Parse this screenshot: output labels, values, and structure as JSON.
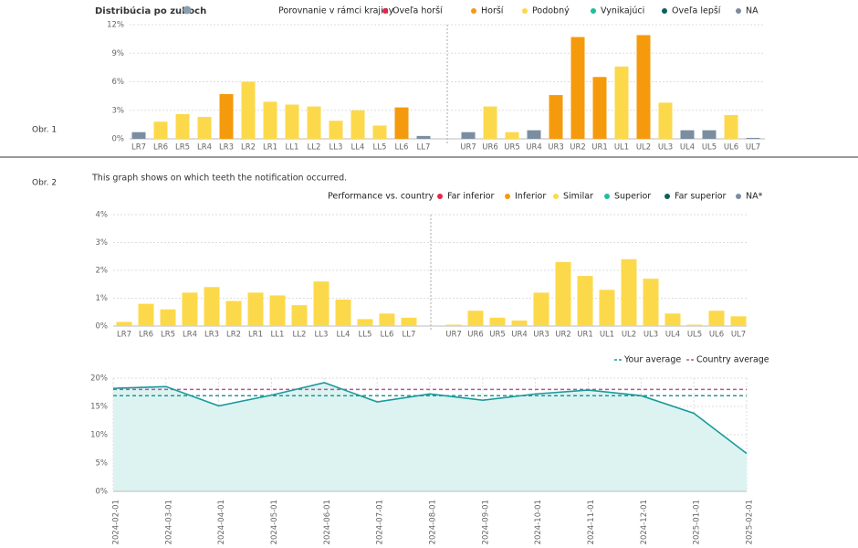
{
  "chart_data": [
    {
      "type": "bar",
      "figure_label": "Obr. 1",
      "title": "Distribúcia po zuboch",
      "legend_title": "Porovnanie v rámci krajiny",
      "legend": [
        {
          "name": "Oveľa horší",
          "color": "#e8264a"
        },
        {
          "name": "Horší",
          "color": "#f59a0c"
        },
        {
          "name": "Podobný",
          "color": "#fcd94a"
        },
        {
          "name": "Vynikajúci",
          "color": "#1dbf9f"
        },
        {
          "name": "Oveľa lepší",
          "color": "#0e5e5e"
        },
        {
          "name": "NA",
          "color": "#7a8ea0"
        }
      ],
      "halves": [
        {
          "categories": [
            "LR7",
            "LR6",
            "LR5",
            "LR4",
            "LR3",
            "LR2",
            "LR1",
            "LL1",
            "LL2",
            "LL3",
            "LL4",
            "LL5",
            "LL6",
            "LL7"
          ],
          "values": [
            0.7,
            1.8,
            2.6,
            2.3,
            4.7,
            6.0,
            3.9,
            3.6,
            3.4,
            1.9,
            3.0,
            1.4,
            3.3,
            0.3
          ],
          "colors": [
            "#7a8ea0",
            "#fcd94a",
            "#fcd94a",
            "#fcd94a",
            "#f59a0c",
            "#fcd94a",
            "#fcd94a",
            "#fcd94a",
            "#fcd94a",
            "#fcd94a",
            "#fcd94a",
            "#fcd94a",
            "#f59a0c",
            "#7a8ea0"
          ]
        },
        {
          "categories": [
            "UR7",
            "UR6",
            "UR5",
            "UR4",
            "UR3",
            "UR2",
            "UR1",
            "UL1",
            "UL2",
            "UL3",
            "UL4",
            "UL5",
            "UL6",
            "UL7"
          ],
          "values": [
            0.7,
            3.4,
            0.7,
            0.9,
            4.6,
            10.7,
            6.5,
            7.6,
            10.9,
            3.8,
            0.9,
            0.9,
            2.5,
            0.1
          ],
          "colors": [
            "#7a8ea0",
            "#fcd94a",
            "#fcd94a",
            "#7a8ea0",
            "#f59a0c",
            "#f59a0c",
            "#f59a0c",
            "#fcd94a",
            "#f59a0c",
            "#fcd94a",
            "#7a8ea0",
            "#7a8ea0",
            "#fcd94a",
            "#7a8ea0"
          ]
        }
      ],
      "ylim": [
        0,
        12
      ],
      "yticks": [
        {
          "value": 0,
          "label": "0%"
        },
        {
          "value": 3,
          "label": "3%"
        },
        {
          "value": 6,
          "label": "6%"
        },
        {
          "value": 9,
          "label": "9%"
        },
        {
          "value": 12,
          "label": "12%"
        }
      ],
      "grid": true
    },
    {
      "type": "bar",
      "figure_label": "Obr. 2",
      "subtitle": "This graph shows on which teeth the notification occurred.",
      "legend_title": "Performance vs. country",
      "legend": [
        {
          "name": "Far inferior",
          "color": "#e8264a"
        },
        {
          "name": "Inferior",
          "color": "#f59a0c"
        },
        {
          "name": "Similar",
          "color": "#fcd94a"
        },
        {
          "name": "Superior",
          "color": "#1dbf9f"
        },
        {
          "name": "Far superior",
          "color": "#0e5e5e"
        },
        {
          "name": "NA*",
          "color": "#7a8ea0"
        }
      ],
      "halves": [
        {
          "categories": [
            "LR7",
            "LR6",
            "LR5",
            "LR4",
            "LR3",
            "LR2",
            "LR1",
            "LL1",
            "LL2",
            "LL3",
            "LL4",
            "LL5",
            "LL6",
            "LL7"
          ],
          "values": [
            0.15,
            0.8,
            0.6,
            1.2,
            1.4,
            0.9,
            1.2,
            1.1,
            0.75,
            1.6,
            0.95,
            0.25,
            0.45,
            0.3
          ],
          "colors": [
            "#fcd94a",
            "#fcd94a",
            "#fcd94a",
            "#fcd94a",
            "#fcd94a",
            "#fcd94a",
            "#fcd94a",
            "#fcd94a",
            "#fcd94a",
            "#fcd94a",
            "#fcd94a",
            "#fcd94a",
            "#fcd94a",
            "#fcd94a"
          ]
        },
        {
          "categories": [
            "UR7",
            "UR6",
            "UR5",
            "UR4",
            "UR3",
            "UR2",
            "UR1",
            "UL1",
            "UL2",
            "UL3",
            "UL4",
            "UL5",
            "UL6",
            "UL7"
          ],
          "values": [
            0.05,
            0.55,
            0.3,
            0.2,
            1.2,
            2.3,
            1.8,
            1.3,
            2.4,
            1.7,
            0.45,
            0.05,
            0.55,
            0.35
          ],
          "colors": [
            "#fcd94a",
            "#fcd94a",
            "#fcd94a",
            "#fcd94a",
            "#fcd94a",
            "#fcd94a",
            "#fcd94a",
            "#fcd94a",
            "#fcd94a",
            "#fcd94a",
            "#fcd94a",
            "#fcd94a",
            "#fcd94a",
            "#fcd94a"
          ]
        }
      ],
      "ylim": [
        0,
        4
      ],
      "yticks": [
        {
          "value": 0,
          "label": "0%"
        },
        {
          "value": 1,
          "label": "1%"
        },
        {
          "value": 2,
          "label": "2%"
        },
        {
          "value": 3,
          "label": "3%"
        },
        {
          "value": 4,
          "label": "4%"
        }
      ],
      "grid": true
    },
    {
      "type": "line",
      "x": [
        "2024-02-01",
        "2024-03-01",
        "2024-04-01",
        "2024-05-01",
        "2024-06-01",
        "2024-07-01",
        "2024-08-01",
        "2024-09-01",
        "2024-10-01",
        "2024-11-01",
        "2024-12-01",
        "2025-01-01",
        "2025-02-01"
      ],
      "values": [
        18.2,
        18.5,
        15.1,
        17.0,
        19.2,
        15.8,
        17.2,
        16.1,
        17.2,
        17.9,
        16.9,
        13.8,
        6.7
      ],
      "color": "#1a9a9a",
      "fill": "#dcf3f1",
      "reference_lines": [
        {
          "name": "Your average",
          "value": 16.9,
          "color": "#1a9a9a"
        },
        {
          "name": "Country average",
          "value": 18,
          "color": "#b05a9a"
        }
      ],
      "ylim": [
        0,
        20
      ],
      "yticks": [
        {
          "value": 0,
          "label": "0%"
        },
        {
          "value": 5,
          "label": "5%"
        },
        {
          "value": 10,
          "label": "10%"
        },
        {
          "value": 15,
          "label": "15%"
        },
        {
          "value": 20,
          "label": "20%"
        }
      ],
      "grid": true
    }
  ]
}
